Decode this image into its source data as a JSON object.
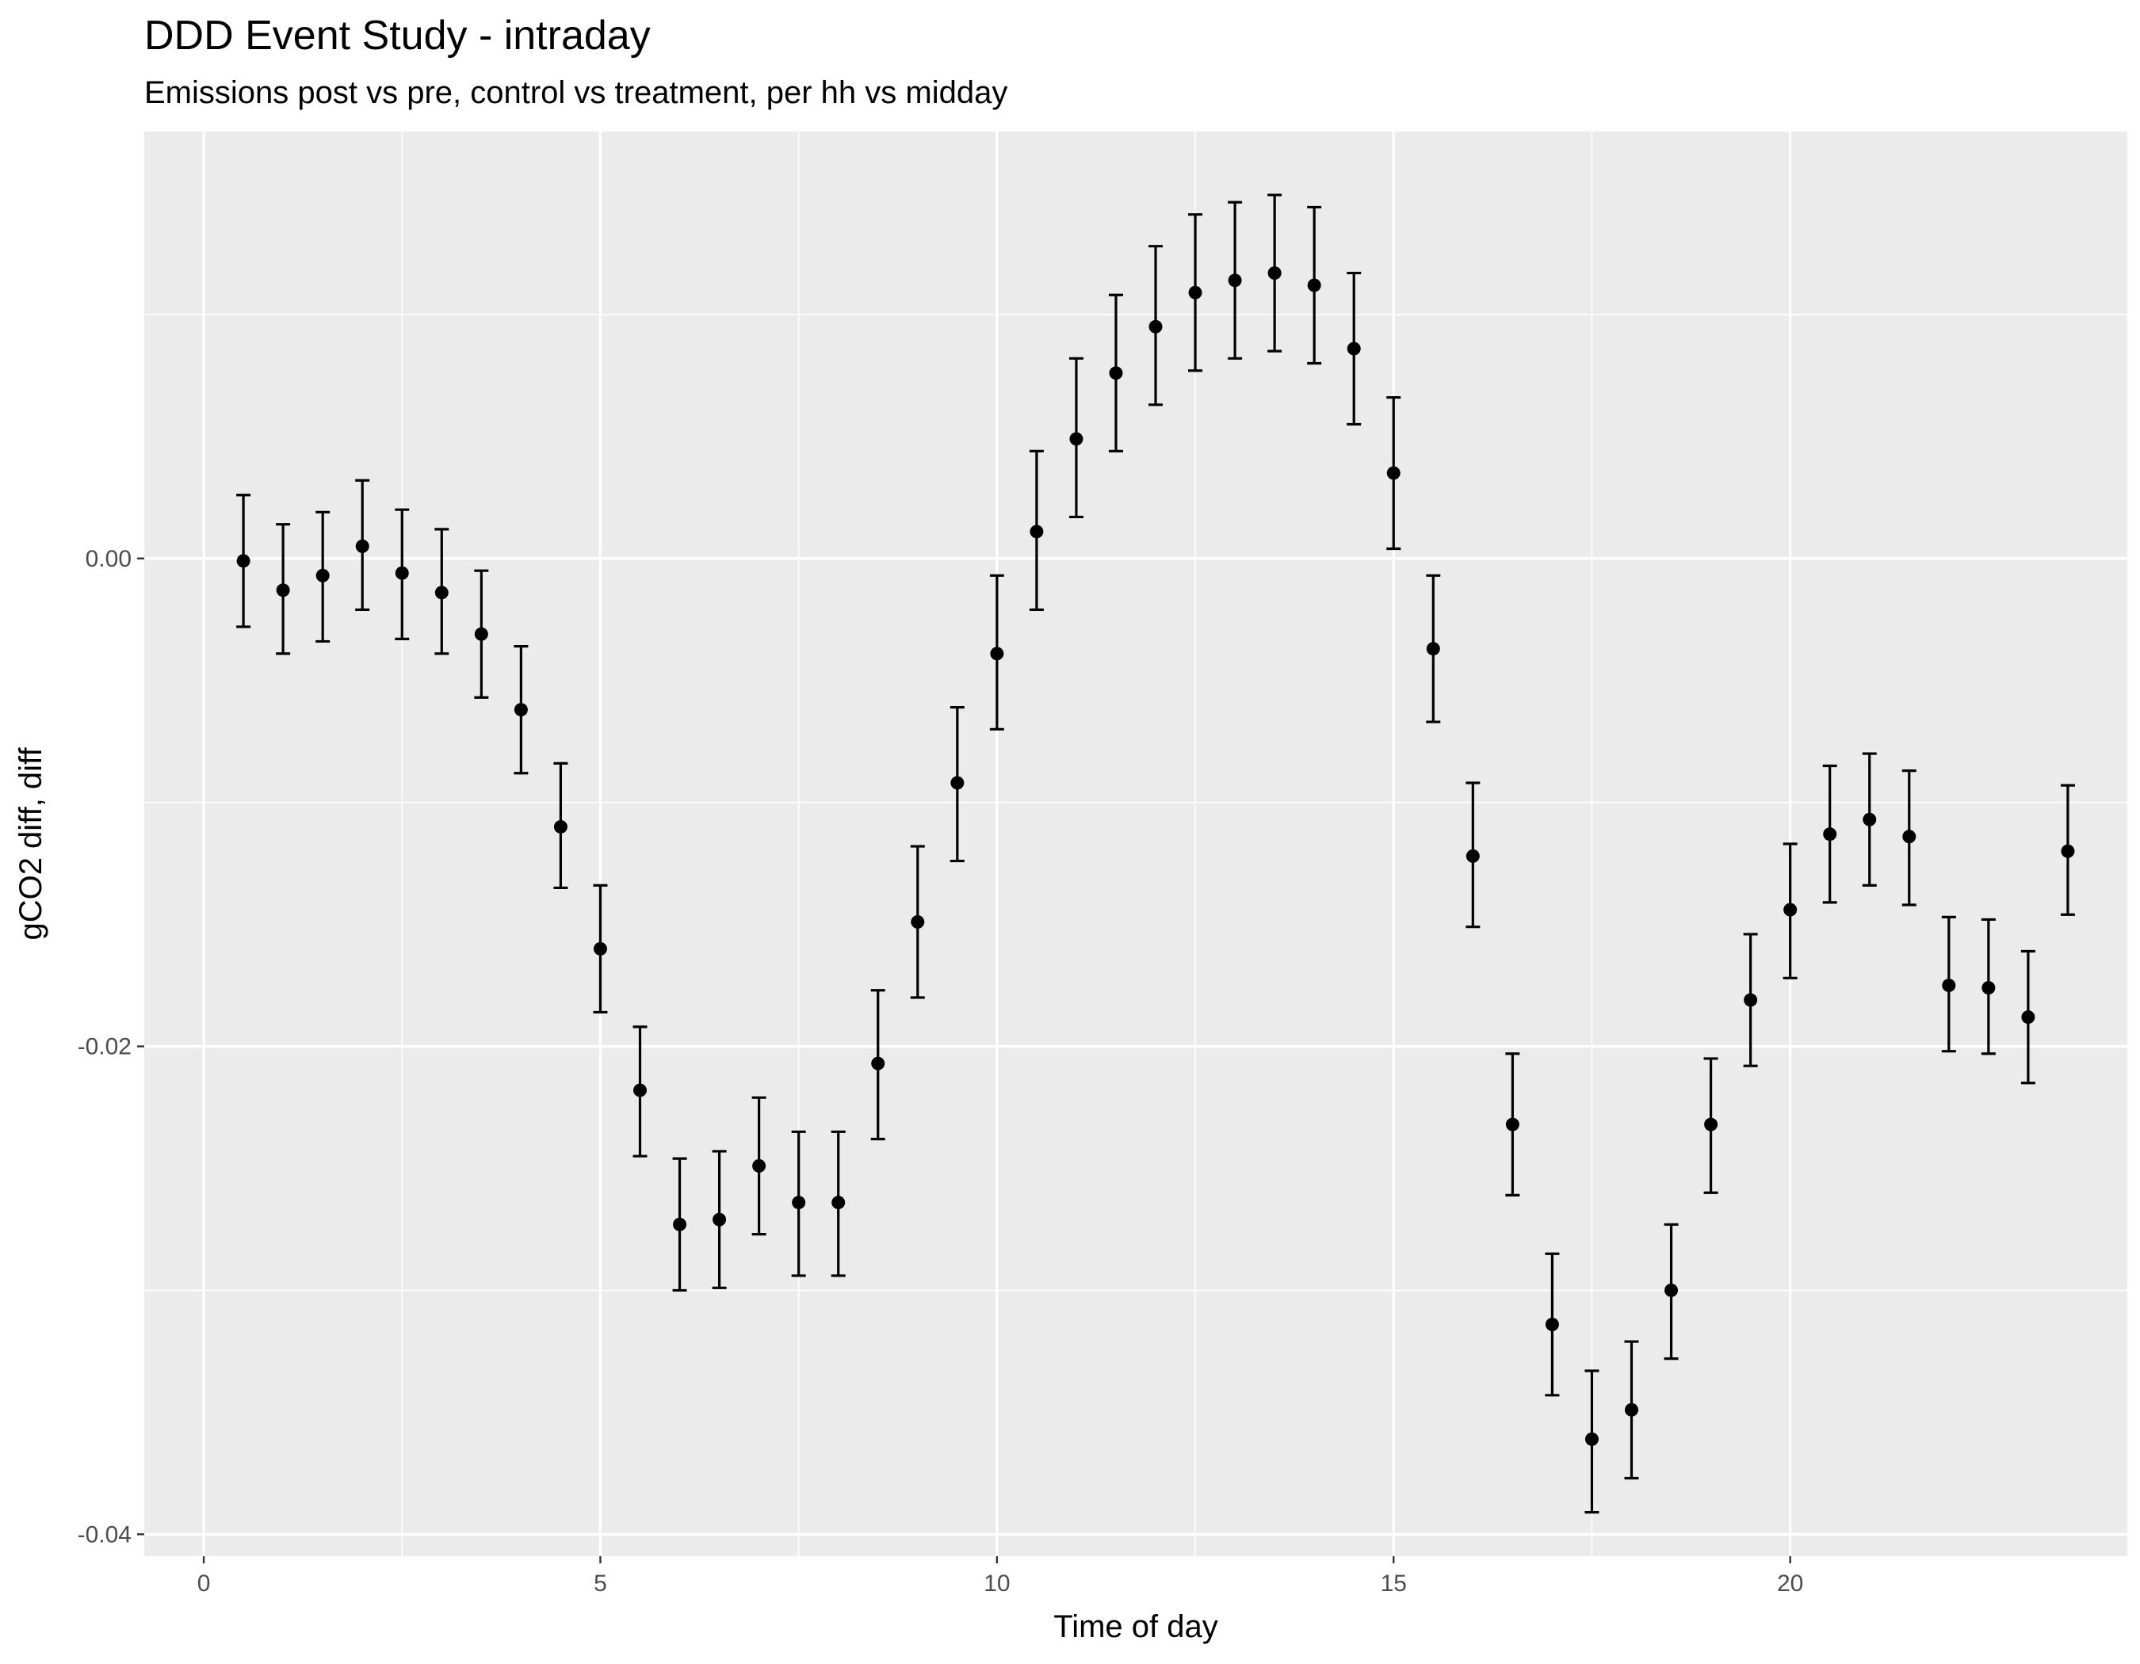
{
  "chart_data": {
    "type": "scatter",
    "title": "DDD Event Study - intraday",
    "subtitle": "Emissions post vs pre, control vs treatment, per hh vs midday",
    "xlabel": "Time of day",
    "ylabel": "gCO2 diff, diff",
    "xlim": [
      -0.75,
      24.25
    ],
    "ylim": [
      -0.0409,
      0.0175
    ],
    "x_ticks": [
      0,
      5,
      10,
      15,
      20
    ],
    "x_tick_labels": [
      "0",
      "5",
      "10",
      "15",
      "20"
    ],
    "y_ticks": [
      0,
      -0.02,
      -0.04
    ],
    "y_tick_labels": [
      "0.00",
      "-0.02",
      "-0.04"
    ],
    "grid": true,
    "colors": {
      "panel": "#ebebeb",
      "grid": "#ffffff",
      "marks": "#000000",
      "tick_text": "#4d4d4d"
    },
    "points": [
      {
        "x": 0.5,
        "y": -0.0001,
        "lo": -0.0028,
        "hi": 0.0026
      },
      {
        "x": 1.0,
        "y": -0.0013,
        "lo": -0.0039,
        "hi": 0.0014
      },
      {
        "x": 1.5,
        "y": -0.0007,
        "lo": -0.0034,
        "hi": 0.0019
      },
      {
        "x": 2.0,
        "y": 0.0005,
        "lo": -0.0021,
        "hi": 0.0032
      },
      {
        "x": 2.5,
        "y": -0.0006,
        "lo": -0.0033,
        "hi": 0.002
      },
      {
        "x": 3.0,
        "y": -0.0014,
        "lo": -0.0039,
        "hi": 0.0012
      },
      {
        "x": 3.5,
        "y": -0.0031,
        "lo": -0.0057,
        "hi": -0.0005
      },
      {
        "x": 4.0,
        "y": -0.0062,
        "lo": -0.0088,
        "hi": -0.0036
      },
      {
        "x": 4.5,
        "y": -0.011,
        "lo": -0.0135,
        "hi": -0.0084
      },
      {
        "x": 5.0,
        "y": -0.016,
        "lo": -0.0186,
        "hi": -0.0134
      },
      {
        "x": 5.5,
        "y": -0.0218,
        "lo": -0.0245,
        "hi": -0.0192
      },
      {
        "x": 6.0,
        "y": -0.0273,
        "lo": -0.03,
        "hi": -0.0246
      },
      {
        "x": 6.5,
        "y": -0.0271,
        "lo": -0.0299,
        "hi": -0.0243
      },
      {
        "x": 7.0,
        "y": -0.0249,
        "lo": -0.0277,
        "hi": -0.0221
      },
      {
        "x": 7.5,
        "y": -0.0264,
        "lo": -0.0294,
        "hi": -0.0235
      },
      {
        "x": 8.0,
        "y": -0.0264,
        "lo": -0.0294,
        "hi": -0.0235
      },
      {
        "x": 8.5,
        "y": -0.0207,
        "lo": -0.0238,
        "hi": -0.0177
      },
      {
        "x": 9.0,
        "y": -0.0149,
        "lo": -0.018,
        "hi": -0.0118
      },
      {
        "x": 9.5,
        "y": -0.0092,
        "lo": -0.0124,
        "hi": -0.0061
      },
      {
        "x": 10.0,
        "y": -0.0039,
        "lo": -0.007,
        "hi": -0.0007
      },
      {
        "x": 10.5,
        "y": 0.0011,
        "lo": -0.0021,
        "hi": 0.0044
      },
      {
        "x": 11.0,
        "y": 0.0049,
        "lo": 0.0017,
        "hi": 0.0082
      },
      {
        "x": 11.5,
        "y": 0.0076,
        "lo": 0.0044,
        "hi": 0.0108
      },
      {
        "x": 12.0,
        "y": 0.0095,
        "lo": 0.0063,
        "hi": 0.0128
      },
      {
        "x": 12.5,
        "y": 0.0109,
        "lo": 0.0077,
        "hi": 0.0141
      },
      {
        "x": 13.0,
        "y": 0.0114,
        "lo": 0.0082,
        "hi": 0.0146
      },
      {
        "x": 13.5,
        "y": 0.0117,
        "lo": 0.0085,
        "hi": 0.0149
      },
      {
        "x": 14.0,
        "y": 0.0112,
        "lo": 0.008,
        "hi": 0.0144
      },
      {
        "x": 14.5,
        "y": 0.0086,
        "lo": 0.0055,
        "hi": 0.0117
      },
      {
        "x": 15.0,
        "y": 0.0035,
        "lo": 0.0004,
        "hi": 0.0066
      },
      {
        "x": 15.5,
        "y": -0.0037,
        "lo": -0.0067,
        "hi": -0.0007
      },
      {
        "x": 16.0,
        "y": -0.0122,
        "lo": -0.0151,
        "hi": -0.0092
      },
      {
        "x": 16.5,
        "y": -0.0232,
        "lo": -0.0261,
        "hi": -0.0203
      },
      {
        "x": 17.0,
        "y": -0.0314,
        "lo": -0.0343,
        "hi": -0.0285
      },
      {
        "x": 17.5,
        "y": -0.0361,
        "lo": -0.0391,
        "hi": -0.0333
      },
      {
        "x": 18.0,
        "y": -0.0349,
        "lo": -0.0377,
        "hi": -0.0321
      },
      {
        "x": 18.5,
        "y": -0.03,
        "lo": -0.0328,
        "hi": -0.0273
      },
      {
        "x": 19.0,
        "y": -0.0232,
        "lo": -0.026,
        "hi": -0.0205
      },
      {
        "x": 19.5,
        "y": -0.0181,
        "lo": -0.0208,
        "hi": -0.0154
      },
      {
        "x": 20.0,
        "y": -0.0144,
        "lo": -0.0172,
        "hi": -0.0117
      },
      {
        "x": 20.5,
        "y": -0.0113,
        "lo": -0.0141,
        "hi": -0.0085
      },
      {
        "x": 21.0,
        "y": -0.0107,
        "lo": -0.0134,
        "hi": -0.008
      },
      {
        "x": 21.5,
        "y": -0.0114,
        "lo": -0.0142,
        "hi": -0.0087
      },
      {
        "x": 22.0,
        "y": -0.0175,
        "lo": -0.0202,
        "hi": -0.0147
      },
      {
        "x": 22.5,
        "y": -0.0176,
        "lo": -0.0203,
        "hi": -0.0148
      },
      {
        "x": 23.0,
        "y": -0.0188,
        "lo": -0.0215,
        "hi": -0.0161
      },
      {
        "x": 23.5,
        "y": -0.012,
        "lo": -0.0146,
        "hi": -0.0093
      }
    ]
  }
}
